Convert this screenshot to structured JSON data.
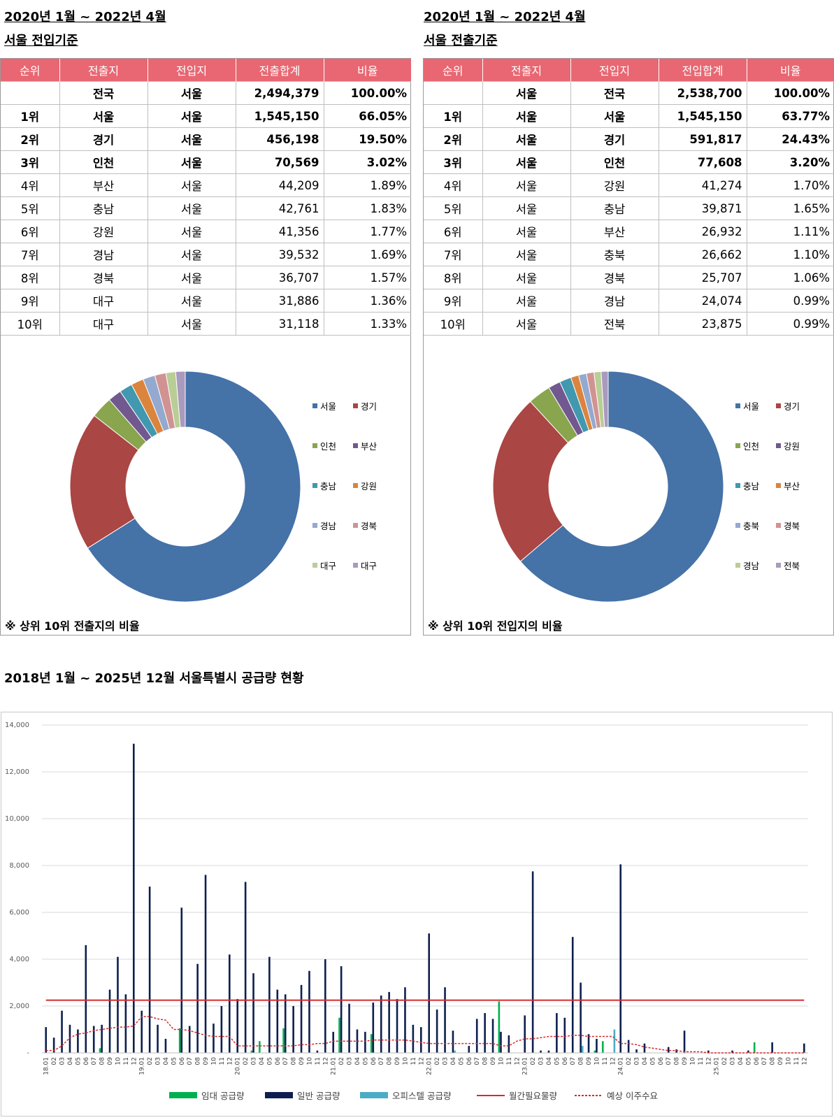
{
  "left": {
    "title1": "2020년 1월 ~  2022년 4월",
    "title2": "서울 전입기준",
    "headers": [
      "순위",
      "전출지",
      "전입지",
      "전출합계",
      "비율"
    ],
    "rows": [
      {
        "rank": "",
        "from": "전국",
        "to": "서울",
        "total": "2,494,379",
        "ratio": "100.00%",
        "bold": true
      },
      {
        "rank": "1위",
        "from": "서울",
        "to": "서울",
        "total": "1,545,150",
        "ratio": "66.05%",
        "bold": true
      },
      {
        "rank": "2위",
        "from": "경기",
        "to": "서울",
        "total": "456,198",
        "ratio": "19.50%",
        "bold": true
      },
      {
        "rank": "3위",
        "from": "인천",
        "to": "서울",
        "total": "70,569",
        "ratio": "3.02%",
        "bold": true
      },
      {
        "rank": "4위",
        "from": "부산",
        "to": "서울",
        "total": "44,209",
        "ratio": "1.89%",
        "bold": false
      },
      {
        "rank": "5위",
        "from": "충남",
        "to": "서울",
        "total": "42,761",
        "ratio": "1.83%",
        "bold": false
      },
      {
        "rank": "6위",
        "from": "강원",
        "to": "서울",
        "total": "41,356",
        "ratio": "1.77%",
        "bold": false
      },
      {
        "rank": "7위",
        "from": "경남",
        "to": "서울",
        "total": "39,532",
        "ratio": "1.69%",
        "bold": false
      },
      {
        "rank": "8위",
        "from": "경북",
        "to": "서울",
        "total": "36,707",
        "ratio": "1.57%",
        "bold": false
      },
      {
        "rank": "9위",
        "from": "대구",
        "to": "서울",
        "total": "31,886",
        "ratio": "1.36%",
        "bold": false
      },
      {
        "rank": "10위",
        "from": "대구",
        "to": "서울",
        "total": "31,118",
        "ratio": "1.33%",
        "bold": false
      }
    ],
    "note": "※ 상위 10위 전출지의 비율"
  },
  "right": {
    "title1": "2020년 1월 ~  2022년 4월",
    "title2": "서울 전출기준",
    "headers": [
      "순위",
      "전출지",
      "전입지",
      "전입합계",
      "비율"
    ],
    "rows": [
      {
        "rank": "",
        "from": "서울",
        "to": "전국",
        "total": "2,538,700",
        "ratio": "100.00%",
        "bold": true
      },
      {
        "rank": "1위",
        "from": "서울",
        "to": "서울",
        "total": "1,545,150",
        "ratio": "63.77%",
        "bold": true
      },
      {
        "rank": "2위",
        "from": "서울",
        "to": "경기",
        "total": "591,817",
        "ratio": "24.43%",
        "bold": true
      },
      {
        "rank": "3위",
        "from": "서울",
        "to": "인천",
        "total": "77,608",
        "ratio": "3.20%",
        "bold": true
      },
      {
        "rank": "4위",
        "from": "서울",
        "to": "강원",
        "total": "41,274",
        "ratio": "1.70%",
        "bold": false
      },
      {
        "rank": "5위",
        "from": "서울",
        "to": "충남",
        "total": "39,871",
        "ratio": "1.65%",
        "bold": false
      },
      {
        "rank": "6위",
        "from": "서울",
        "to": "부산",
        "total": "26,932",
        "ratio": "1.11%",
        "bold": false
      },
      {
        "rank": "7위",
        "from": "서울",
        "to": "충북",
        "total": "26,662",
        "ratio": "1.10%",
        "bold": false
      },
      {
        "rank": "8위",
        "from": "서울",
        "to": "경북",
        "total": "25,707",
        "ratio": "1.06%",
        "bold": false
      },
      {
        "rank": "9위",
        "from": "서울",
        "to": "경남",
        "total": "24,074",
        "ratio": "0.99%",
        "bold": false
      },
      {
        "rank": "10위",
        "from": "서울",
        "to": "전북",
        "total": "23,875",
        "ratio": "0.99%",
        "bold": false
      }
    ],
    "note": "※ 상위 10위 전입지의 비율"
  },
  "supply_title": "2018년 1월 ~ 2025년 12월 서울특별시 공급량 현황",
  "chart_data": [
    {
      "type": "pie",
      "labels": [
        "서울",
        "경기",
        "인천",
        "부산",
        "충남",
        "강원",
        "경남",
        "경북",
        "대구",
        "대구"
      ],
      "values": [
        1545150,
        456198,
        70569,
        44209,
        42761,
        41356,
        39532,
        36707,
        31886,
        31118
      ],
      "colors": [
        "#4572a7",
        "#aa4643",
        "#89a54e",
        "#71588f",
        "#4198af",
        "#db843d",
        "#93a9cf",
        "#d19392",
        "#b9cd96",
        "#a99bbd"
      ],
      "legend": "right"
    },
    {
      "type": "pie",
      "labels": [
        "서울",
        "경기",
        "인천",
        "강원",
        "충남",
        "부산",
        "충북",
        "경북",
        "경남",
        "전북"
      ],
      "values": [
        1545150,
        591817,
        77608,
        41274,
        39871,
        26932,
        26662,
        25707,
        24074,
        23875
      ],
      "colors": [
        "#4572a7",
        "#aa4643",
        "#89a54e",
        "#71588f",
        "#4198af",
        "#db843d",
        "#93a9cf",
        "#d19392",
        "#b9cd96",
        "#a99bbd"
      ],
      "legend": "right"
    },
    {
      "type": "bar",
      "ylim": [
        0,
        14000
      ],
      "yticks": [
        "-",
        "2,000",
        "4,000",
        "6,000",
        "8,000",
        "10,000",
        "12,000",
        "14,000"
      ],
      "grid": true,
      "legend_position": "bottom",
      "categories": [
        "18.01",
        "02",
        "03",
        "04",
        "05",
        "06",
        "07",
        "08",
        "09",
        "10",
        "11",
        "12",
        "19.01",
        "02",
        "03",
        "04",
        "05",
        "06",
        "07",
        "08",
        "09",
        "10",
        "11",
        "12",
        "20.01",
        "02",
        "03",
        "04",
        "05",
        "06",
        "07",
        "08",
        "09",
        "10",
        "11",
        "12",
        "21.01",
        "02",
        "03",
        "04",
        "05",
        "06",
        "07",
        "08",
        "09",
        "10",
        "11",
        "12",
        "22.01",
        "02",
        "03",
        "04",
        "05",
        "06",
        "07",
        "08",
        "09",
        "10",
        "11",
        "12",
        "23.01",
        "02",
        "03",
        "04",
        "05",
        "06",
        "07",
        "08",
        "09",
        "10",
        "11",
        "12",
        "24.01",
        "02",
        "03",
        "04",
        "05",
        "06",
        "07",
        "08",
        "09",
        "10",
        "11",
        "12",
        "25.01",
        "02",
        "03",
        "04",
        "05",
        "06",
        "07",
        "08",
        "09",
        "10",
        "11",
        "12"
      ],
      "series": [
        {
          "name": "임대 공급량",
          "color": "#00b050",
          "values": [
            0,
            0,
            0,
            0,
            0,
            0,
            0,
            200,
            0,
            0,
            0,
            0,
            0,
            0,
            0,
            0,
            0,
            1050,
            0,
            0,
            0,
            0,
            0,
            0,
            0,
            0,
            100,
            500,
            0,
            0,
            1050,
            0,
            0,
            0,
            0,
            0,
            0,
            1500,
            0,
            0,
            0,
            800,
            0,
            0,
            0,
            0,
            0,
            0,
            0,
            0,
            0,
            0,
            0,
            0,
            0,
            0,
            0,
            2200,
            0,
            0,
            0,
            0,
            0,
            0,
            0,
            0,
            0,
            0,
            0,
            100,
            500,
            0,
            0,
            0,
            0,
            0,
            0,
            0,
            0,
            0,
            0,
            0,
            0,
            0,
            0,
            0,
            0,
            0,
            0,
            450,
            0,
            0,
            0,
            0,
            0,
            0
          ]
        },
        {
          "name": "일반 공급량",
          "color": "#0d1f4f",
          "values": [
            1100,
            650,
            1800,
            1200,
            1000,
            4600,
            1150,
            1200,
            2700,
            4100,
            2500,
            13200,
            1800,
            7100,
            1200,
            600,
            0,
            6200,
            1150,
            3800,
            7600,
            1250,
            2000,
            4200,
            2300,
            7300,
            3400,
            0,
            4100,
            2700,
            2500,
            2000,
            2900,
            3500,
            100,
            4000,
            900,
            3700,
            2100,
            1000,
            900,
            2150,
            2450,
            2600,
            2300,
            2800,
            1200,
            1100,
            5100,
            1850,
            2800,
            950,
            0,
            300,
            1450,
            1700,
            1450,
            900,
            750,
            0,
            1600,
            7750,
            100,
            100,
            1700,
            1500,
            4950,
            3000,
            800,
            600,
            0,
            0,
            8050,
            550,
            150,
            400,
            0,
            0,
            250,
            150,
            950,
            0,
            0,
            100,
            0,
            0,
            100,
            0,
            100,
            0,
            0,
            450,
            0,
            0,
            0,
            400
          ]
        },
        {
          "name": "오피스텔 공급량",
          "color": "#4bacc6",
          "values": [
            0,
            0,
            0,
            0,
            0,
            0,
            0,
            0,
            0,
            0,
            0,
            0,
            0,
            0,
            0,
            0,
            0,
            0,
            0,
            0,
            0,
            0,
            0,
            0,
            0,
            0,
            0,
            0,
            0,
            0,
            0,
            0,
            0,
            0,
            0,
            0,
            0,
            0,
            0,
            0,
            0,
            0,
            0,
            0,
            0,
            0,
            0,
            0,
            0,
            0,
            0,
            100,
            0,
            0,
            0,
            0,
            0,
            0,
            0,
            0,
            0,
            0,
            0,
            0,
            0,
            0,
            0,
            300,
            0,
            0,
            0,
            1000,
            0,
            0,
            0,
            0,
            0,
            0,
            0,
            0,
            0,
            0,
            0,
            0,
            0,
            0,
            0,
            0,
            0,
            0,
            0,
            0,
            0,
            0,
            0,
            0
          ]
        },
        {
          "name": "월간필요물량",
          "color": "#d62b2b",
          "values": [
            2250,
            2250,
            2250,
            2250,
            2250,
            2250,
            2250,
            2250,
            2250,
            2250,
            2250,
            2250,
            2250,
            2250,
            2250,
            2250,
            2250,
            2250,
            2250,
            2250,
            2250,
            2250,
            2250,
            2250,
            2250,
            2250,
            2250,
            2250,
            2250,
            2250,
            2250,
            2250,
            2250,
            2250,
            2250,
            2250,
            2250,
            2250,
            2250,
            2250,
            2250,
            2250,
            2250,
            2250,
            2250,
            2250,
            2250,
            2250,
            2250,
            2250,
            2250,
            2250,
            2250,
            2250,
            2250,
            2250,
            2250,
            2250,
            2250,
            2250,
            2250,
            2250,
            2250,
            2250,
            2250,
            2250,
            2250,
            2250,
            2250,
            2250,
            2250,
            2250,
            2250,
            2250,
            2250,
            2250,
            2250,
            2250,
            2250,
            2250,
            2250,
            2250,
            2250,
            2250,
            2250,
            2250,
            2250,
            2250,
            2250,
            2250,
            2250,
            2250,
            2250,
            2250,
            2250,
            2250
          ]
        },
        {
          "name": "예상 이주수요",
          "color": "#d62b2b",
          "values": [
            100,
            100,
            300,
            650,
            800,
            850,
            950,
            1000,
            1050,
            1100,
            1100,
            1150,
            1550,
            1550,
            1450,
            1400,
            1000,
            1000,
            950,
            850,
            750,
            700,
            700,
            700,
            300,
            300,
            300,
            300,
            300,
            300,
            300,
            300,
            350,
            350,
            400,
            400,
            500,
            500,
            500,
            500,
            500,
            550,
            550,
            550,
            550,
            550,
            500,
            450,
            400,
            400,
            400,
            400,
            400,
            400,
            400,
            400,
            400,
            300,
            300,
            500,
            600,
            600,
            650,
            700,
            700,
            700,
            750,
            750,
            700,
            700,
            700,
            700,
            400,
            400,
            350,
            250,
            200,
            150,
            100,
            100,
            50,
            50,
            50,
            0,
            0,
            0,
            0,
            0,
            0,
            0,
            0,
            0,
            0,
            0,
            0,
            0
          ]
        }
      ]
    }
  ]
}
